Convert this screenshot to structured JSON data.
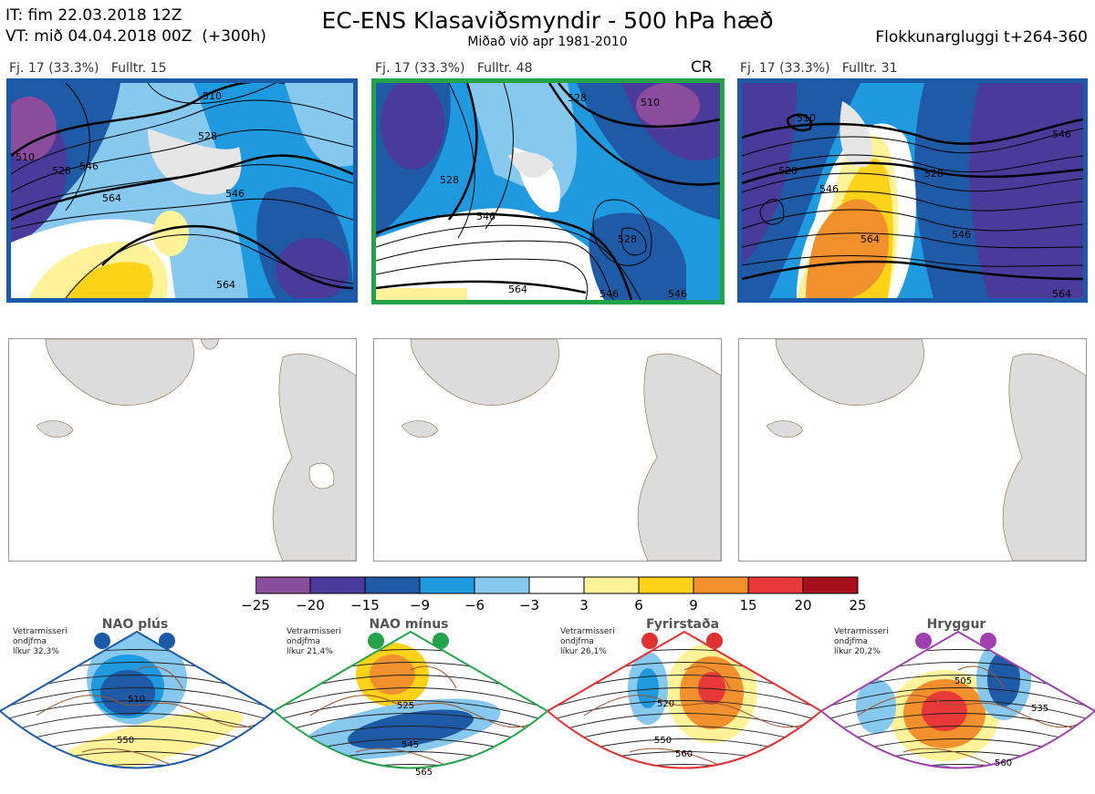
{
  "header": {
    "line1": "IT: fim 22.03.2018 12Z",
    "line2": "VT: mið 04.04.2018 00Z  (+300h)",
    "title": "EC-ENS Klasaviðsmyndir - 500 hPa hæð",
    "subtitle": "Miðað við apr 1981-2010",
    "right": "Flokkunargluggi t+264-360"
  },
  "panels": [
    {
      "label": "Fj. 17 (33.3%)   Fulltr. 15",
      "badge": "",
      "frame_color": "#1a5aa8",
      "contour_labels": [
        "510",
        "528",
        "546",
        "564",
        "510",
        "528",
        "546",
        "564"
      ]
    },
    {
      "label": "Fj. 17 (33.3%)   Fulltr. 48",
      "badge": "CR",
      "frame_color": "#22a34a",
      "contour_labels": [
        "510",
        "528",
        "528",
        "546",
        "564",
        "546",
        "528",
        "546"
      ]
    },
    {
      "label": "Fj. 17 (33.3%)   Fulltr. 31",
      "badge": "",
      "frame_color": "#1a5aa8",
      "contour_labels": [
        "510",
        "528",
        "546",
        "564",
        "528",
        "546",
        "546",
        "564"
      ]
    }
  ],
  "chart_data": {
    "type": "heatmap",
    "colorbar": {
      "ticks": [
        "−25",
        "−20",
        "−15",
        "−9",
        "−6",
        "−3",
        "3",
        "6",
        "9",
        "15",
        "20",
        "25"
      ],
      "colors": [
        "#8b4c9e",
        "#4a3a9a",
        "#1e5aa6",
        "#1f9ae0",
        "#86c8ee",
        "#ffffff",
        "#fff39a",
        "#ffd21a",
        "#f3902e",
        "#e8383a",
        "#a5101c"
      ]
    }
  },
  "regimes": [
    {
      "name": "NAO plús",
      "info": [
        "Vetrarmisseri",
        "ondjfma",
        "líkur 32,3%"
      ],
      "color": "#1a5aa8",
      "contour_labels": [
        "510",
        "550"
      ]
    },
    {
      "name": "NAO mínus",
      "info": [
        "Vetrarmisseri",
        "ondjfma",
        "líkur 21,4%"
      ],
      "color": "#22a34a",
      "contour_labels": [
        "525",
        "545",
        "565"
      ]
    },
    {
      "name": "Fyrirstaða",
      "info": [
        "Vetrarmisseri",
        "ondjfma",
        "líkur 26,1%"
      ],
      "color": "#e03030",
      "contour_labels": [
        "520",
        "550",
        "560"
      ]
    },
    {
      "name": "Hryggur",
      "info": [
        "Vetrarmisseri",
        "ondjfma",
        "líkur 20,2%"
      ],
      "color": "#a040b0",
      "contour_labels": [
        "505",
        "535",
        "560"
      ]
    }
  ],
  "icons": {
    "badge_marker": "circle-marker-icon"
  }
}
